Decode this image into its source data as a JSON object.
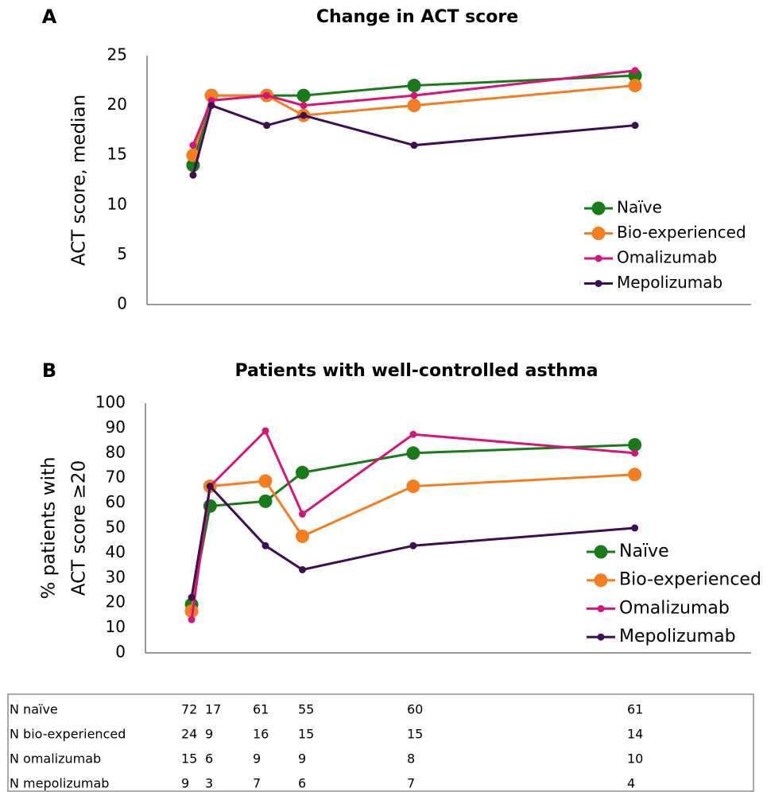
{
  "chart_data": [
    {
      "type": "line",
      "label": "A",
      "title": "Change in ACT score",
      "ylabel": "ACT score, median",
      "x": [
        0,
        1,
        4,
        6,
        12,
        24
      ],
      "xlim": [
        -2.5,
        30.3
      ],
      "ylim": [
        0,
        25
      ],
      "yticks": [
        0,
        5,
        10,
        15,
        20,
        25
      ],
      "grid": false,
      "legend": "lower right",
      "series": [
        {
          "name": "Naïve",
          "color": "#187a18",
          "marker": "large",
          "values": [
            14,
            21,
            21,
            21,
            22,
            23
          ]
        },
        {
          "name": "Bio-experienced",
          "color": "#f47d20",
          "marker": "large",
          "values": [
            15,
            21,
            21,
            19,
            20,
            22
          ]
        },
        {
          "name": "Omalizumab",
          "color": "#d6157a",
          "marker": "small",
          "values": [
            16,
            20.5,
            21,
            20,
            21,
            23.5
          ]
        },
        {
          "name": "Mepolizumab",
          "color": "#3d0f52",
          "marker": "small",
          "values": [
            13,
            20,
            18,
            19,
            16,
            18
          ]
        }
      ]
    },
    {
      "type": "line",
      "label": "B",
      "title": "Patients with well-controlled asthma",
      "ylabel": [
        "% patients with",
        "ACT score ≥20"
      ],
      "x": [
        0,
        1,
        4,
        6,
        12,
        24
      ],
      "xlim": [
        -2.5,
        30.3
      ],
      "ylim": [
        0,
        100
      ],
      "yticks": [
        0,
        10,
        20,
        30,
        40,
        50,
        60,
        70,
        80,
        90,
        100
      ],
      "grid": false,
      "legend": "lower right",
      "series": [
        {
          "name": "Naïve",
          "color": "#187a18",
          "marker": "large",
          "values": [
            19.4,
            58.8,
            60.7,
            72.2,
            80,
            83.3
          ]
        },
        {
          "name": "Bio-experienced",
          "color": "#f47d20",
          "marker": "large",
          "values": [
            16.7,
            66.7,
            68.8,
            46.7,
            66.7,
            71.4
          ]
        },
        {
          "name": "Omalizumab",
          "color": "#d6157a",
          "marker": "small",
          "values": [
            13.3,
            66.7,
            88.9,
            55.6,
            87.5,
            80
          ]
        },
        {
          "name": "Mepolizumab",
          "color": "#3d0f52",
          "marker": "small",
          "values": [
            22.2,
            66.7,
            42.9,
            33.3,
            42.9,
            50
          ]
        }
      ]
    }
  ],
  "table": {
    "rows": [
      [
        "N naïve",
        72,
        17,
        61,
        55,
        60,
        61
      ],
      [
        "N bio-experienced",
        24,
        9,
        16,
        15,
        15,
        14
      ],
      [
        "N omalizumab",
        15,
        6,
        9,
        9,
        8,
        10
      ],
      [
        "N mepolizumab",
        9,
        3,
        7,
        6,
        7,
        4
      ]
    ]
  }
}
